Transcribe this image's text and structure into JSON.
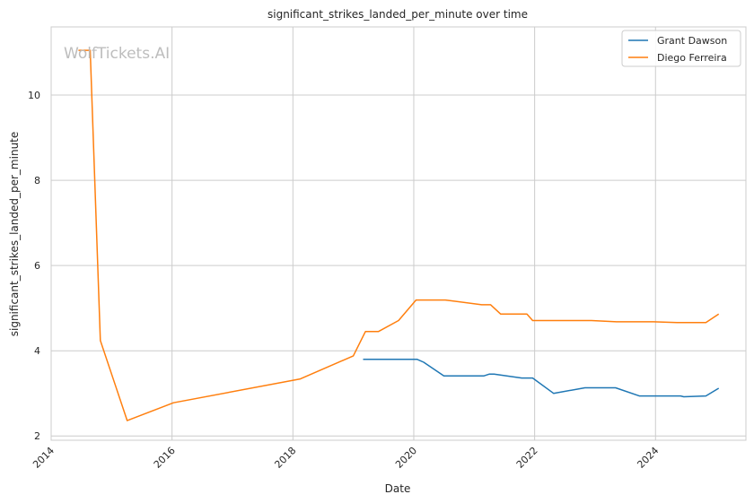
{
  "chart_data": {
    "type": "line",
    "title": "significant_strikes_landed_per_minute over time",
    "xlabel": "Date",
    "ylabel": "significant_strikes_landed_per_minute",
    "x_ticks": [
      "2014",
      "2016",
      "2018",
      "2020",
      "2022",
      "2024"
    ],
    "y_ticks": [
      "2",
      "4",
      "6",
      "8",
      "10"
    ],
    "xlim": [
      "2014-01-01",
      "2025-07-01"
    ],
    "ylim": [
      1.9,
      11.6
    ],
    "grid": true,
    "legend_position": "top-right",
    "watermark": "WolfTickets.AI",
    "series": [
      {
        "name": "Grant Dawson",
        "color": "#1f77b4",
        "points": [
          [
            "2019-03-01",
            3.8
          ],
          [
            "2020-01-20",
            3.8
          ],
          [
            "2020-03-01",
            3.73
          ],
          [
            "2020-07-01",
            3.41
          ],
          [
            "2021-03-01",
            3.41
          ],
          [
            "2021-04-01",
            3.45
          ],
          [
            "2021-05-01",
            3.45
          ],
          [
            "2021-10-15",
            3.36
          ],
          [
            "2021-12-20",
            3.36
          ],
          [
            "2022-04-25",
            3.0
          ],
          [
            "2022-11-01",
            3.13
          ],
          [
            "2023-05-05",
            3.13
          ],
          [
            "2023-09-25",
            2.94
          ],
          [
            "2024-06-01",
            2.94
          ],
          [
            "2024-06-20",
            2.92
          ],
          [
            "2024-11-01",
            2.94
          ],
          [
            "2025-01-18",
            3.12
          ]
        ]
      },
      {
        "name": "Diego Ferreira",
        "color": "#ff7f0e",
        "points": [
          [
            "2014-06-15",
            11.05
          ],
          [
            "2014-08-25",
            11.05
          ],
          [
            "2014-10-25",
            4.24
          ],
          [
            "2015-04-05",
            2.36
          ],
          [
            "2016-01-10",
            2.78
          ],
          [
            "2018-02-15",
            3.34
          ],
          [
            "2019-01-01",
            3.88
          ],
          [
            "2019-03-15",
            4.45
          ],
          [
            "2019-06-01",
            4.45
          ],
          [
            "2019-10-01",
            4.71
          ],
          [
            "2020-01-15",
            5.19
          ],
          [
            "2020-07-10",
            5.19
          ],
          [
            "2021-02-15",
            5.08
          ],
          [
            "2021-04-10",
            5.08
          ],
          [
            "2021-06-10",
            4.86
          ],
          [
            "2021-11-15",
            4.86
          ],
          [
            "2021-12-20",
            4.71
          ],
          [
            "2022-12-10",
            4.71
          ],
          [
            "2023-05-10",
            4.68
          ],
          [
            "2023-12-20",
            4.68
          ],
          [
            "2024-05-10",
            4.66
          ],
          [
            "2024-11-01",
            4.66
          ],
          [
            "2025-01-18",
            4.86
          ]
        ]
      }
    ]
  }
}
